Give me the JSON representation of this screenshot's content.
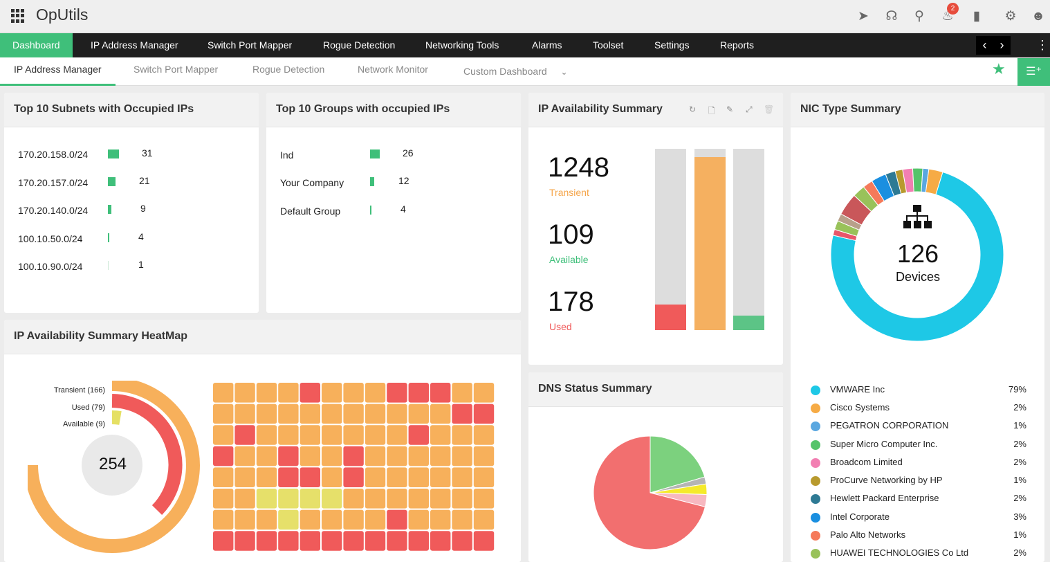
{
  "app": {
    "title": "OpUtils"
  },
  "header": {
    "notification_count": "2"
  },
  "nav": {
    "items": [
      "Dashboard",
      "IP Address Manager",
      "Switch Port Mapper",
      "Rogue Detection",
      "Networking Tools",
      "Alarms",
      "Toolset",
      "Settings",
      "Reports"
    ],
    "active": "Dashboard"
  },
  "subnav": {
    "items": [
      "IP Address Manager",
      "Switch Port Mapper",
      "Rogue Detection",
      "Network Monitor",
      "Custom Dashboard"
    ],
    "active": "IP Address Manager"
  },
  "subnets_card": {
    "title": "Top 10 Subnets with Occupied IPs",
    "rows": [
      {
        "label": "170.20.158.0/24",
        "value": 31
      },
      {
        "label": "170.20.157.0/24",
        "value": 21
      },
      {
        "label": "170.20.140.0/24",
        "value": 9
      },
      {
        "label": "100.10.50.0/24",
        "value": 4
      },
      {
        "label": "100.10.90.0/24",
        "value": 1
      }
    ]
  },
  "groups_card": {
    "title": "Top 10 Groups with occupied IPs",
    "rows": [
      {
        "label": "Ind",
        "value": 26
      },
      {
        "label": "Your Company",
        "value": 12
      },
      {
        "label": "Default Group",
        "value": 4
      }
    ]
  },
  "availability_card": {
    "title": "IP Availability Summary",
    "stats": [
      {
        "value": "1248",
        "label": "Transient",
        "color": "#f5a54a"
      },
      {
        "value": "109",
        "label": "Available",
        "color": "#3fbf7a"
      },
      {
        "value": "178",
        "label": "Used",
        "color": "#f05a5a"
      }
    ]
  },
  "nic_card": {
    "title": "NIC Type Summary",
    "total": "126",
    "total_label": "Devices",
    "legend": [
      {
        "name": "VMWARE Inc",
        "pct": "79%",
        "color": "#1ec8e6"
      },
      {
        "name": "Cisco Systems",
        "pct": "2%",
        "color": "#f6ab45"
      },
      {
        "name": "PEGATRON CORPORATION",
        "pct": "1%",
        "color": "#5aa7e0"
      },
      {
        "name": "Super Micro Computer Inc.",
        "pct": "2%",
        "color": "#55c46a"
      },
      {
        "name": "Broadcom Limited",
        "pct": "2%",
        "color": "#f27fb2"
      },
      {
        "name": "ProCurve Networking by HP",
        "pct": "1%",
        "color": "#b89a2e"
      },
      {
        "name": "Hewlett Packard Enterprise",
        "pct": "2%",
        "color": "#2e7a94"
      },
      {
        "name": "Intel Corporate",
        "pct": "3%",
        "color": "#1a8fe0"
      },
      {
        "name": "Palo Alto Networks",
        "pct": "1%",
        "color": "#f57a5a"
      },
      {
        "name": "HUAWEI TECHNOLOGIES Co Ltd",
        "pct": "2%",
        "color": "#99c25a"
      }
    ]
  },
  "heatmap_card": {
    "title": "IP Availability Summary HeatMap",
    "gauge": {
      "total": "254",
      "labels": [
        "Transient (166)",
        "Used (79)",
        "Available (9)"
      ]
    }
  },
  "dns_card": {
    "title": "DNS Status Summary"
  }
}
